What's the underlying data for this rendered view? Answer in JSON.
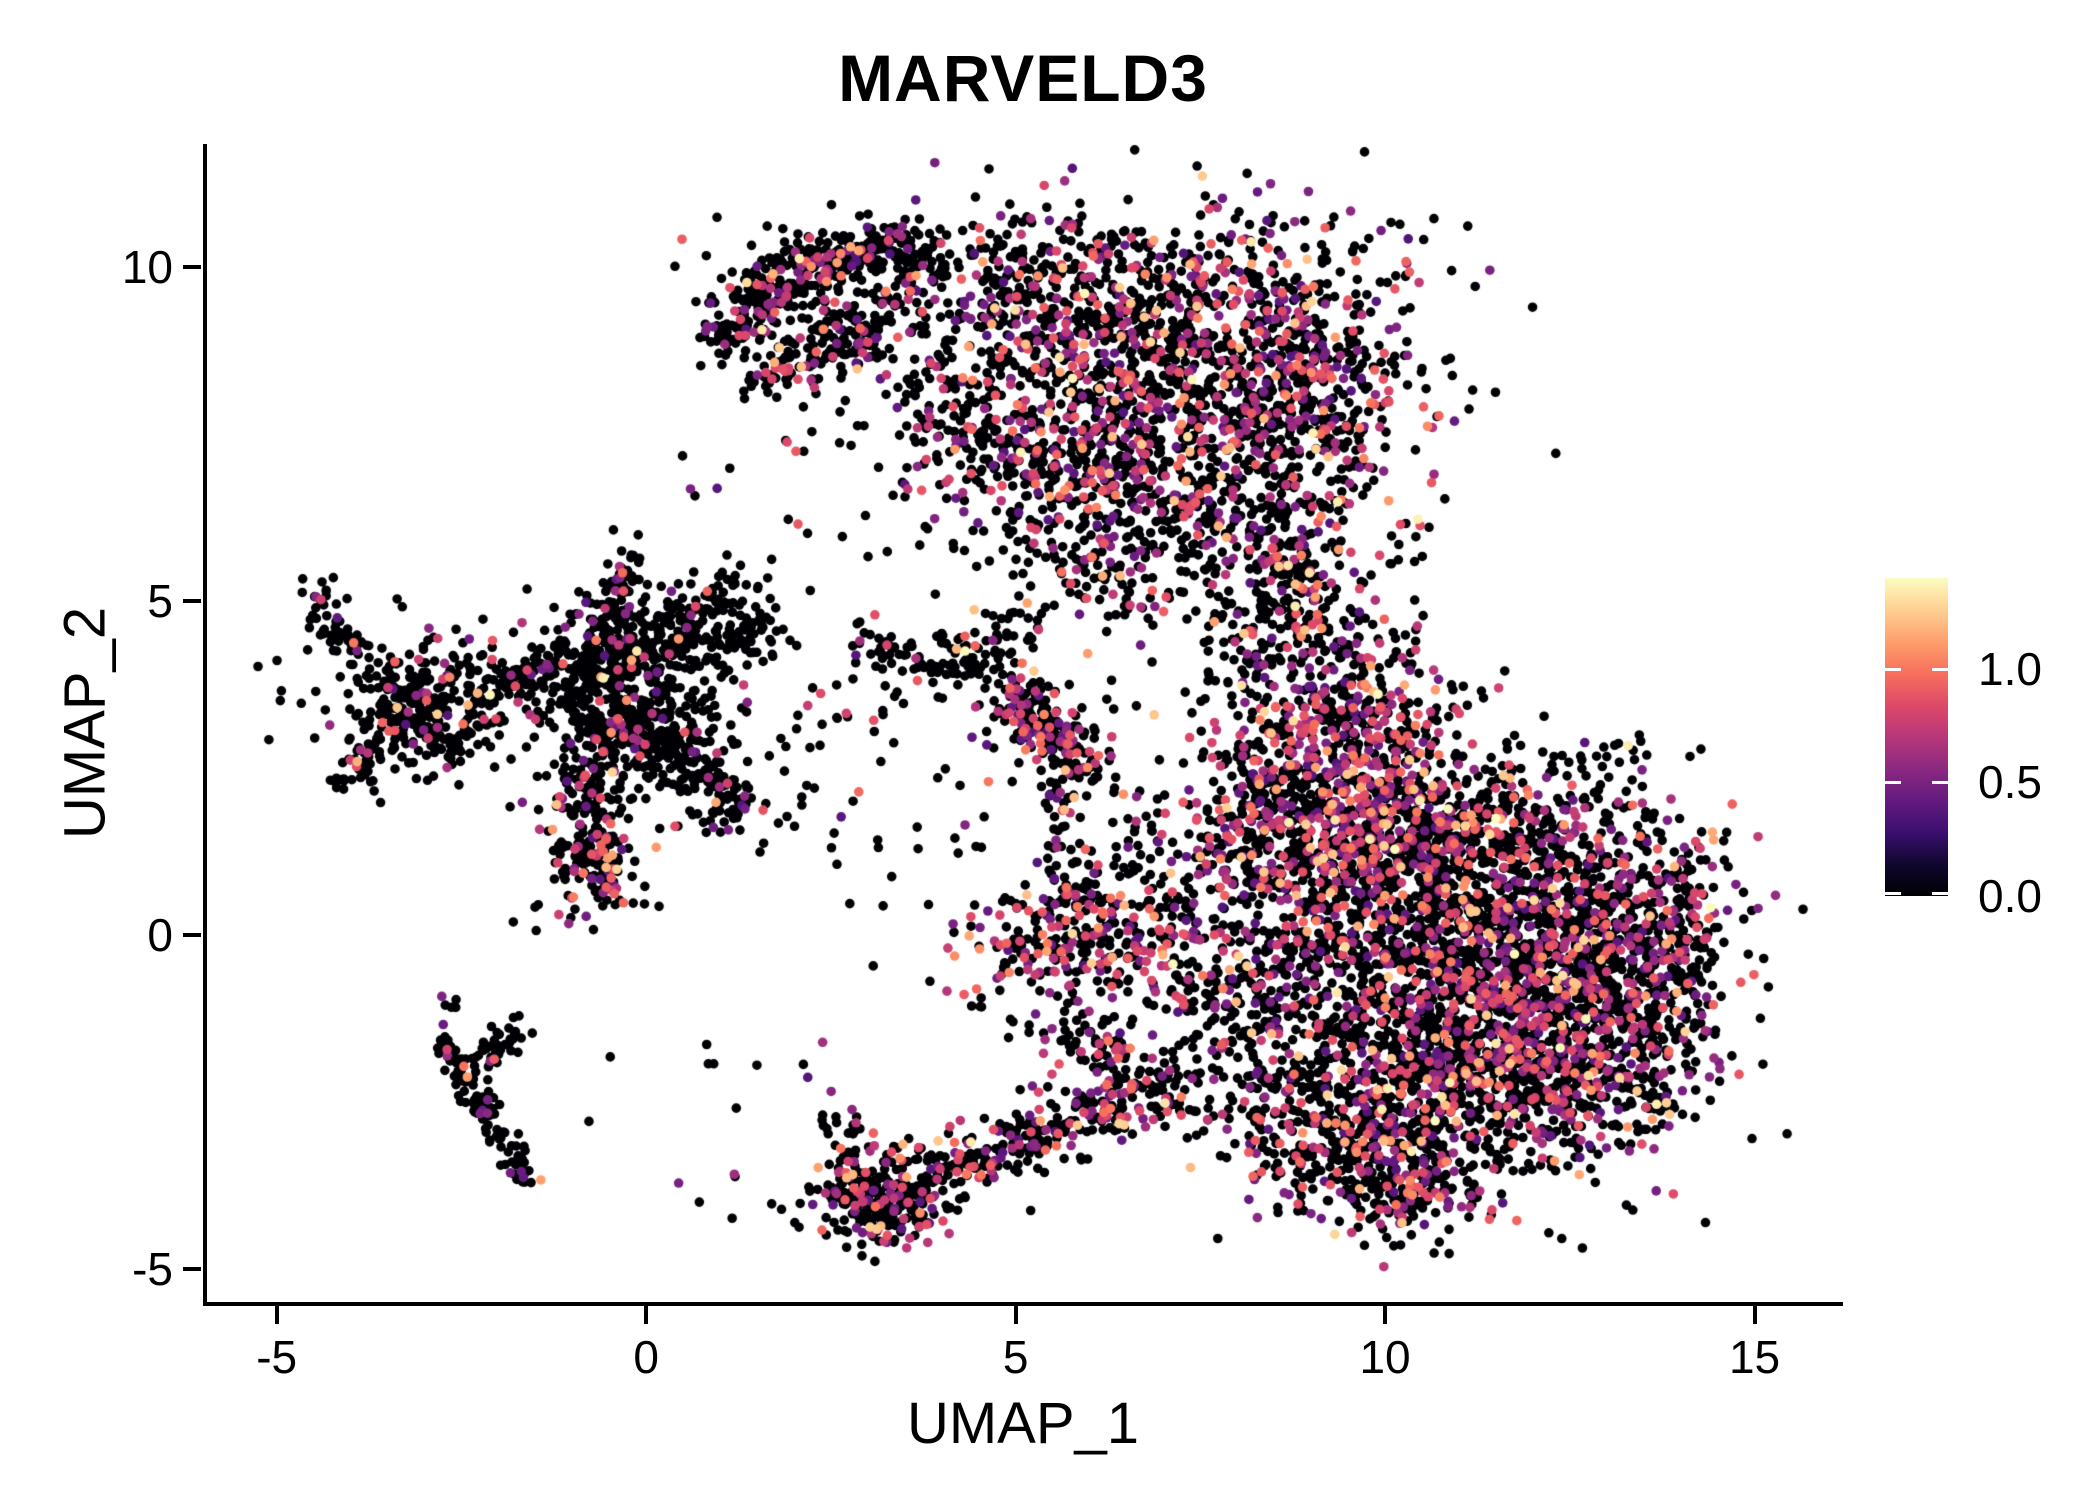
{
  "page": {
    "background": "#ffffff"
  },
  "chart_data": {
    "type": "scatter",
    "title": "MARVELD3",
    "xlabel": "UMAP_1",
    "ylabel": "UMAP_2",
    "x_ticks": [
      "-5",
      "0",
      "5",
      "10",
      "15"
    ],
    "x_tick_values": [
      -5,
      0,
      5,
      10,
      15
    ],
    "y_ticks": [
      "10",
      "5",
      "0",
      "-5"
    ],
    "y_tick_values": [
      10,
      5,
      0,
      -5
    ],
    "x_range": [
      -5.97,
      16.17
    ],
    "y_range": [
      -5.5,
      11.85
    ],
    "grid": false,
    "legend_position": "right",
    "point_radius": 4.8,
    "point_count_approx": 12200,
    "seed": 20240613,
    "palette": {
      "name": "magma",
      "stops": [
        [
          0,
          "#000004"
        ],
        [
          0.1,
          "#10072e"
        ],
        [
          0.2,
          "#3b0f70"
        ],
        [
          0.3,
          "#641a80"
        ],
        [
          0.4,
          "#8c2981"
        ],
        [
          0.5,
          "#b73779"
        ],
        [
          0.6,
          "#de4968"
        ],
        [
          0.7,
          "#f7705c"
        ],
        [
          0.8,
          "#fe9f6d"
        ],
        [
          0.9,
          "#fecf92"
        ],
        [
          1,
          "#fcfdbf"
        ]
      ]
    },
    "colorbar": {
      "vmin": 0.0,
      "vmax": 1.4,
      "tick_labels": [
        "1.0",
        "0.5",
        "0.0"
      ],
      "tick_values": [
        1.0,
        0.5,
        0.0
      ]
    },
    "zero_expression_color": "#000004",
    "expression_value_mix": [
      {
        "lo": 0.35,
        "hi": 0.55,
        "w": 0.3
      },
      {
        "lo": 0.55,
        "hi": 0.95,
        "w": 0.55
      },
      {
        "lo": 0.95,
        "hi": 1.25,
        "w": 0.12
      },
      {
        "lo": 1.25,
        "hi": 1.4,
        "w": 0.03
      }
    ],
    "clusters": [
      {
        "t": "l",
        "x1": 0.95,
        "y1": 8.95,
        "x2": 2.1,
        "y2": 10.0,
        "s": 0.22,
        "n": 170,
        "c": 0.18
      },
      {
        "t": "l",
        "x1": 2.1,
        "y1": 10.0,
        "x2": 3.7,
        "y2": 10.45,
        "s": 0.22,
        "n": 150,
        "c": 0.2
      },
      {
        "t": "l",
        "x1": 1.45,
        "y1": 8.35,
        "x2": 3.3,
        "y2": 9.15,
        "s": 0.22,
        "n": 130,
        "c": 0.18
      },
      {
        "t": "u",
        "x1": 1.3,
        "y1": 8.2,
        "x2": 3.8,
        "y2": 10.3,
        "n": 70,
        "c": 0.15
      },
      {
        "t": "b",
        "x": 5.0,
        "y": 9.75,
        "sx": 1.5,
        "sy": 0.6,
        "n": 430,
        "c": 0.28
      },
      {
        "t": "b",
        "x": 7.25,
        "y": 8.55,
        "sx": 1.5,
        "sy": 1.1,
        "n": 1150,
        "c": 0.32
      },
      {
        "t": "b",
        "x": 5.95,
        "y": 7.0,
        "sx": 1.0,
        "sy": 0.8,
        "n": 400,
        "c": 0.32
      },
      {
        "t": "b",
        "x": 9.0,
        "y": 8.1,
        "sx": 0.6,
        "sy": 1.05,
        "n": 240,
        "c": 0.3
      },
      {
        "t": "b",
        "x": 7.9,
        "y": 6.2,
        "sx": 0.85,
        "sy": 0.6,
        "n": 220,
        "c": 0.3
      },
      {
        "t": "b",
        "x": 4.35,
        "y": 7.55,
        "sx": 1.1,
        "sy": 0.85,
        "n": 90,
        "c": 0.2
      },
      {
        "t": "b",
        "x": 6.3,
        "y": 5.3,
        "sx": 0.9,
        "sy": 0.5,
        "n": 70,
        "c": 0.25
      },
      {
        "t": "u",
        "x1": 3.5,
        "y1": 7.2,
        "x2": 4.6,
        "y2": 8.4,
        "n": 40,
        "c": 0.15
      },
      {
        "t": "l",
        "x1": 8.55,
        "y1": 5.9,
        "x2": 9.25,
        "y2": 4.1,
        "s": 0.3,
        "n": 150,
        "c": 0.3
      },
      {
        "t": "u",
        "x1": 7.6,
        "y1": 3.8,
        "x2": 8.4,
        "y2": 5.2,
        "n": 45,
        "c": 0.25
      },
      {
        "t": "u",
        "x1": 9.4,
        "y1": 4.0,
        "x2": 10.6,
        "y2": 6.4,
        "n": 28,
        "c": 0.2
      },
      {
        "t": "b",
        "x": 9.35,
        "y": 2.85,
        "sx": 0.8,
        "sy": 0.8,
        "n": 520,
        "c": 0.42
      },
      {
        "t": "b",
        "x": 9.65,
        "y": 1.45,
        "sx": 0.7,
        "sy": 0.55,
        "n": 250,
        "c": 0.35
      },
      {
        "t": "b",
        "x": 8.45,
        "y": 2.1,
        "sx": 0.45,
        "sy": 0.75,
        "n": 110,
        "c": 0.32
      },
      {
        "t": "b",
        "x": 7.95,
        "y": 1.2,
        "sx": 0.3,
        "sy": 0.9,
        "n": 80,
        "c": 0.3
      },
      {
        "t": "b",
        "x": 10.6,
        "y": 0.35,
        "sx": 1.05,
        "sy": 1.15,
        "n": 880,
        "c": 0.32
      },
      {
        "t": "b",
        "x": 12.15,
        "y": -0.55,
        "sx": 1.15,
        "sy": 1.25,
        "n": 920,
        "c": 0.3
      },
      {
        "t": "b",
        "x": 11.2,
        "y": -2.0,
        "sx": 1.15,
        "sy": 0.95,
        "n": 720,
        "c": 0.3
      },
      {
        "t": "b",
        "x": 13.55,
        "y": -0.2,
        "sx": 0.8,
        "sy": 0.85,
        "n": 400,
        "c": 0.3,
        "cl": [
          7,
          14.5,
          -5,
          3
        ]
      },
      {
        "t": "b",
        "x": 9.6,
        "y": -2.95,
        "sx": 0.85,
        "sy": 0.7,
        "n": 400,
        "c": 0.3
      },
      {
        "t": "b",
        "x": 8.6,
        "y": -0.85,
        "sx": 0.7,
        "sy": 1.15,
        "n": 360,
        "c": 0.33
      },
      {
        "t": "b",
        "x": 11.3,
        "y": 1.55,
        "sx": 1.35,
        "sy": 0.55,
        "n": 360,
        "c": 0.33
      },
      {
        "t": "b",
        "x": 12.9,
        "y": -2.05,
        "sx": 0.7,
        "sy": 0.55,
        "n": 190,
        "c": 0.28
      },
      {
        "t": "b",
        "x": 10.35,
        "y": -3.85,
        "sx": 0.55,
        "sy": 0.35,
        "n": 130,
        "c": 0.28
      },
      {
        "t": "u",
        "x1": 12.2,
        "y1": 2.2,
        "x2": 13.6,
        "y2": 3.0,
        "n": 14,
        "c": 0.2
      },
      {
        "t": "b",
        "x": 5.85,
        "y": -0.05,
        "sx": 0.8,
        "sy": 0.42,
        "r": 12,
        "n": 290,
        "c": 0.4
      },
      {
        "t": "l",
        "x1": 5.7,
        "y1": -1.45,
        "x2": 6.65,
        "y2": -2.1,
        "s": 0.22,
        "n": 80,
        "c": 0.3
      },
      {
        "t": "l",
        "x1": 5.85,
        "y1": 0.45,
        "x2": 5.6,
        "y2": 2.25,
        "s": 0.15,
        "n": 55,
        "c": 0.25
      },
      {
        "t": "u",
        "x1": 6.3,
        "y1": 0.4,
        "x2": 7.6,
        "y2": 2.2,
        "n": 60,
        "c": 0.25
      },
      {
        "t": "b",
        "x": 7.15,
        "y": -0.7,
        "sx": 0.5,
        "sy": 0.7,
        "n": 80,
        "c": 0.3
      },
      {
        "t": "b",
        "x": 3.15,
        "y": -4.0,
        "sx": 0.45,
        "sy": 0.35,
        "n": 250,
        "c": 0.3
      },
      {
        "t": "l",
        "x1": 3.6,
        "y1": -3.65,
        "x2": 7.3,
        "y2": -2.25,
        "s": 0.28,
        "n": 320,
        "c": 0.3
      },
      {
        "t": "b",
        "x": 2.72,
        "y": -3.2,
        "sx": 0.2,
        "sy": 0.35,
        "n": 35,
        "c": 0.15
      },
      {
        "t": "b",
        "x": -0.35,
        "y": 3.9,
        "sx": 0.5,
        "sy": 0.55,
        "n": 300,
        "c": 0.1
      },
      {
        "t": "l",
        "x1": -0.45,
        "y1": 4.5,
        "x2": -0.25,
        "y2": 5.8,
        "s": 0.16,
        "n": 70,
        "c": 0.1
      },
      {
        "t": "l",
        "x1": -0.1,
        "y1": 4.35,
        "x2": 1.35,
        "y2": 5.35,
        "s": 0.22,
        "n": 100,
        "c": 0.12
      },
      {
        "t": "l",
        "x1": 0.2,
        "y1": 4.2,
        "x2": 1.75,
        "y2": 4.6,
        "s": 0.2,
        "n": 85,
        "c": 0.12
      },
      {
        "t": "l",
        "x1": -0.85,
        "y1": 4.05,
        "x2": -2.15,
        "y2": 3.55,
        "s": 0.25,
        "n": 100,
        "c": 0.08
      },
      {
        "t": "l",
        "x1": -0.5,
        "y1": 3.35,
        "x2": -0.85,
        "y2": 1.7,
        "s": 0.28,
        "n": 170,
        "c": 0.15
      },
      {
        "t": "b",
        "x": -0.68,
        "y": 1.05,
        "sx": 0.3,
        "sy": 0.35,
        "n": 140,
        "c": 0.28
      },
      {
        "t": "l",
        "x1": 0.1,
        "y1": 3.3,
        "x2": 0.95,
        "y2": 2.25,
        "s": 0.28,
        "n": 130,
        "c": 0.12
      },
      {
        "t": "b",
        "x": 1.1,
        "y": 1.9,
        "sx": 0.25,
        "sy": 0.25,
        "n": 55,
        "c": 0.15
      },
      {
        "t": "b",
        "x": 0.15,
        "y": 3.3,
        "sx": 1.0,
        "sy": 0.95,
        "n": 140,
        "c": 0.08
      },
      {
        "t": "b",
        "x": -3.05,
        "y": 3.4,
        "sx": 0.55,
        "sy": 0.5,
        "n": 320,
        "c": 0.1
      },
      {
        "t": "l",
        "x1": -4.45,
        "y1": 5.25,
        "x2": -4.25,
        "y2": 4.5,
        "s": 0.13,
        "n": 30,
        "c": 0.1
      },
      {
        "t": "l",
        "x1": -4.25,
        "y1": 4.5,
        "x2": -3.7,
        "y2": 4.2,
        "s": 0.13,
        "n": 30,
        "c": 0.12
      },
      {
        "t": "l",
        "x1": -3.6,
        "y1": 2.7,
        "x2": -4.15,
        "y2": 2.3,
        "s": 0.13,
        "n": 35,
        "c": 0.08
      },
      {
        "t": "l",
        "x1": -2.75,
        "y1": -1.6,
        "x2": -1.78,
        "y2": -3.3,
        "s": 0.11,
        "n": 95,
        "c": 0.05
      },
      {
        "t": "l",
        "x1": -2.4,
        "y1": -1.95,
        "x2": -1.72,
        "y2": -1.38,
        "s": 0.11,
        "n": 40,
        "c": 0.06
      },
      {
        "t": "b",
        "x": -1.7,
        "y": -3.55,
        "sx": 0.14,
        "sy": 0.2,
        "n": 25,
        "c": 0.08
      },
      {
        "t": "u",
        "x1": -2.8,
        "y1": -1.35,
        "x2": -2.55,
        "y2": -0.9,
        "n": 6,
        "c": 0.15
      },
      {
        "t": "l",
        "x1": 3.05,
        "y1": 4.35,
        "x2": 4.75,
        "y2": 4.0,
        "s": 0.22,
        "n": 105,
        "c": 0.12
      },
      {
        "t": "u",
        "x1": 4.5,
        "y1": 4.4,
        "x2": 5.35,
        "y2": 4.85,
        "n": 22,
        "c": 0.15
      },
      {
        "t": "l",
        "x1": 4.95,
        "y1": 3.55,
        "x2": 5.95,
        "y2": 2.55,
        "s": 0.2,
        "n": 190,
        "c": 0.35
      },
      {
        "t": "b",
        "x": 5.4,
        "y": 3.1,
        "sx": 0.65,
        "sy": 0.65,
        "n": 55,
        "c": 0.2
      },
      {
        "t": "u",
        "x1": 1.6,
        "y1": 5.6,
        "x2": 3.3,
        "y2": 7.8,
        "n": 10,
        "c": 0.1
      },
      {
        "t": "u",
        "x1": 1.8,
        "y1": 2.8,
        "x2": 4.4,
        "y2": 3.9,
        "n": 22,
        "c": 0.12
      },
      {
        "t": "u",
        "x1": 2.0,
        "y1": 0.3,
        "x2": 4.6,
        "y2": 2.6,
        "n": 26,
        "c": 0.12
      },
      {
        "t": "u",
        "x1": -1.2,
        "y1": -2.8,
        "x2": 2.4,
        "y2": -1.6,
        "n": 10,
        "c": 0.1
      },
      {
        "t": "u",
        "x1": 0.3,
        "y1": -4.4,
        "x2": 2.5,
        "y2": -3.2,
        "n": 10,
        "c": 0.1
      },
      {
        "t": "u",
        "x1": -5.35,
        "y1": 2.9,
        "x2": -4.5,
        "y2": 4.4,
        "n": 7,
        "c": 0.1
      },
      {
        "t": "u",
        "x1": -1.9,
        "y1": 0.0,
        "x2": -1.0,
        "y2": 0.7,
        "n": 6,
        "c": 0.1
      },
      {
        "t": "u",
        "x1": 4.3,
        "y1": -1.6,
        "x2": 5.3,
        "y2": -0.6,
        "n": 12,
        "c": 0.15
      },
      {
        "t": "u",
        "x1": 0.2,
        "y1": 6.1,
        "x2": 1.2,
        "y2": 7.2,
        "n": 5,
        "c": 0.1
      }
    ]
  }
}
